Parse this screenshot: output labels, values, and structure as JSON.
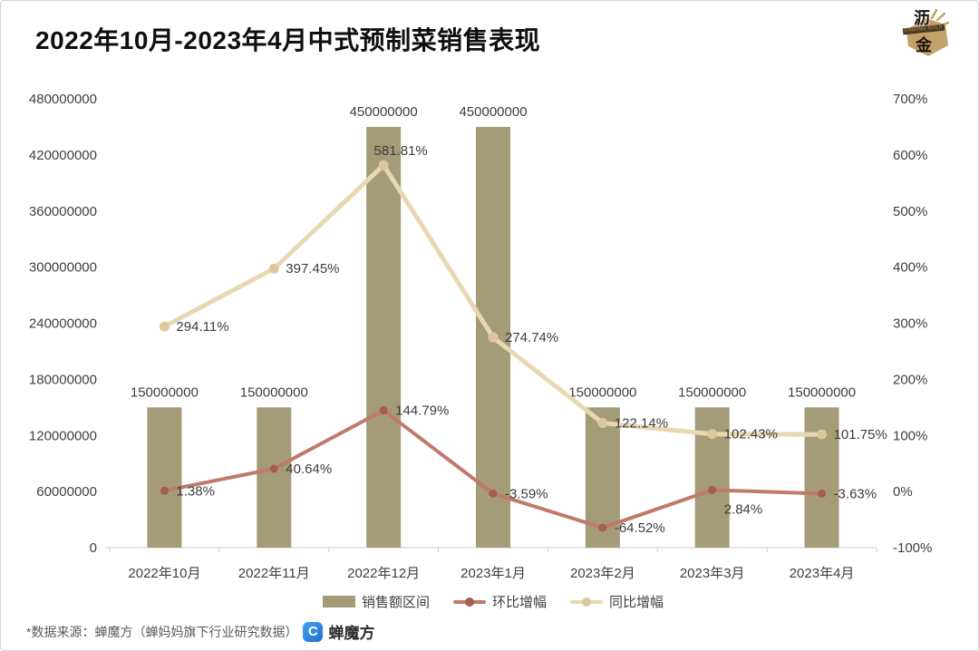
{
  "header": {
    "title": "2022年10月-2023年4月中式预制菜销售表现"
  },
  "corner_logo": {
    "char_top": "沥",
    "char_bottom": "金",
    "banner_text": "FINDING GOLD",
    "color": "#c2a269"
  },
  "chart_data": {
    "type": "combo-bar-line",
    "grid": false,
    "legend_position": "bottom",
    "categories": [
      "2022年10月",
      "2022年11月",
      "2022年12月",
      "2023年1月",
      "2023年2月",
      "2023年3月",
      "2023年4月"
    ],
    "series": [
      {
        "name": "销售额区间",
        "type": "bar",
        "axis": "left",
        "color": "#a49b77",
        "values": [
          150000000,
          150000000,
          450000000,
          450000000,
          150000000,
          150000000,
          150000000
        ],
        "labels": [
          "150000000",
          "150000000",
          "450000000",
          "450000000",
          "150000000",
          "150000000",
          "150000000"
        ]
      },
      {
        "name": "环比增幅",
        "type": "line",
        "axis": "right",
        "color": "#c07a6b",
        "marker_color": "#a65c4f",
        "values": [
          1.38,
          40.64,
          144.79,
          -3.59,
          -64.52,
          2.84,
          -3.63
        ],
        "labels": [
          "1.38%",
          "40.64%",
          "144.79%",
          "-3.59%",
          "-64.52%",
          "2.84%",
          "-3.63%"
        ]
      },
      {
        "name": "同比增幅",
        "type": "line",
        "axis": "right",
        "color": "#e8d8b2",
        "marker_color": "#dcc89c",
        "values": [
          294.11,
          397.45,
          581.81,
          274.74,
          122.14,
          102.43,
          101.75
        ],
        "labels": [
          "294.11%",
          "397.45%",
          "581.81%",
          "274.74%",
          "122.14%",
          "102.43%",
          "101.75%"
        ]
      }
    ],
    "left_axis": {
      "min": 0,
      "max": 480000000,
      "tick_labels": [
        "0",
        "60000000",
        "120000000",
        "180000000",
        "240000000",
        "300000000",
        "360000000",
        "420000000",
        "480000000"
      ]
    },
    "right_axis": {
      "min": -100,
      "max": 700,
      "tick_labels": [
        "-100%",
        "0%",
        "100%",
        "200%",
        "300%",
        "400%",
        "500%",
        "600%",
        "700%"
      ]
    }
  },
  "footer": {
    "source_text": "*数据来源：蝉魔方（蝉妈妈旗下行业研究数据）",
    "brand_logo_glyph": "C",
    "brand_name": "蝉魔方",
    "brand_blue": "#2e86e0"
  }
}
